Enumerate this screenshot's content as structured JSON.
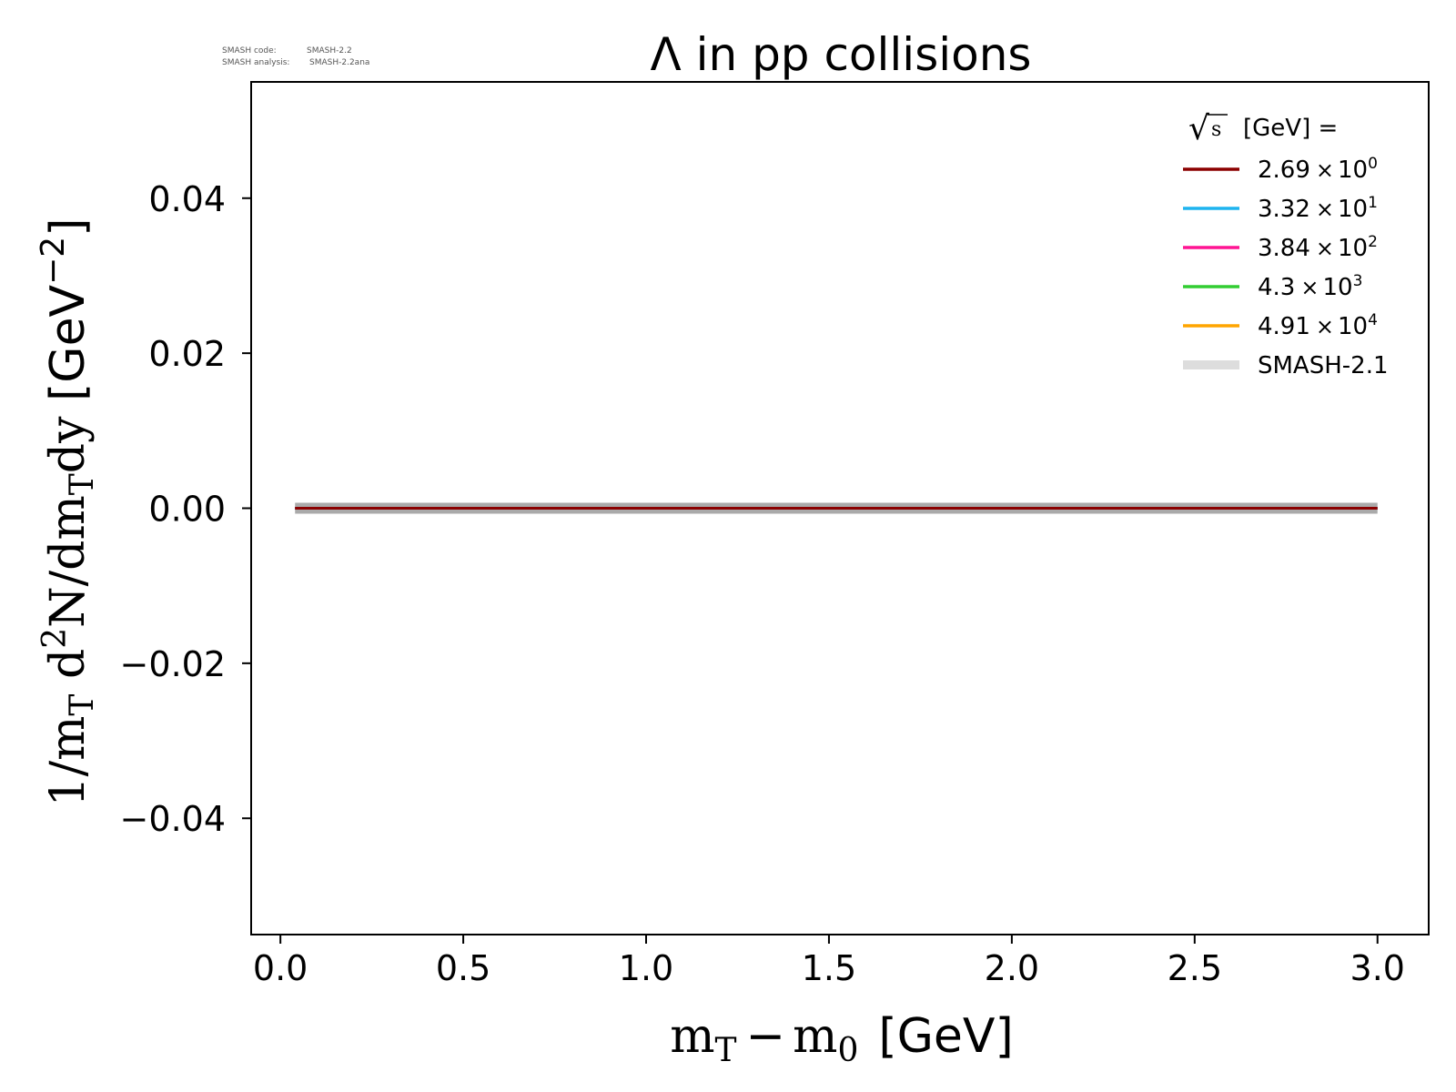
{
  "version_info": {
    "code_label": "SMASH code:",
    "code_value": "SMASH-2.2",
    "analysis_label": "SMASH analysis:",
    "analysis_value": "SMASH-2.2ana"
  },
  "chart_data": {
    "type": "line",
    "title": "Λ in pp collisions",
    "xlabel": {
      "m1": "m",
      "s1": "T",
      "minus": "−",
      "m2": "m",
      "s2": "0",
      "unit": "[GeV]"
    },
    "ylabel": {
      "p1": "1/m",
      "s1": "T",
      "p2": " d",
      "sup": "2",
      "p3": "N/dm",
      "s2": "T",
      "p4": "dy ",
      "unit_open": "[GeV",
      "unit_sup": "−2",
      "unit_close": "]"
    },
    "xlim": [
      -0.08,
      3.14
    ],
    "ylim": [
      -0.055,
      0.055
    ],
    "xticks": [
      0.0,
      0.5,
      1.0,
      1.5,
      2.0,
      2.5,
      3.0
    ],
    "xtick_labels": [
      "0.0",
      "0.5",
      "1.0",
      "1.5",
      "2.0",
      "2.5",
      "3.0"
    ],
    "yticks": [
      0.04,
      0.02,
      0.0,
      -0.02,
      -0.04
    ],
    "ytick_labels": [
      "0.04",
      "0.02",
      "0.00",
      "−0.02",
      "−0.04"
    ],
    "grid": false,
    "legend": {
      "placement": "top-right",
      "title_radical": "√",
      "title_s": "s",
      "title_rest": "[GeV] =",
      "entries": [
        {
          "mantissa": "2.69",
          "times": "×",
          "base": "10",
          "exp": "0",
          "color": "#8b0000"
        },
        {
          "mantissa": "3.32",
          "times": "×",
          "base": "10",
          "exp": "1",
          "color": "#1eb4ef"
        },
        {
          "mantissa": "3.84",
          "times": "×",
          "base": "10",
          "exp": "2",
          "color": "#ff1493"
        },
        {
          "mantissa": "4.3",
          "times": "×",
          "base": "10",
          "exp": "3",
          "color": "#32cd32"
        },
        {
          "mantissa": "4.91",
          "times": "×",
          "base": "10",
          "exp": "4",
          "color": "#ffa500"
        },
        {
          "label": "SMASH-2.1",
          "color": "#dddddd"
        }
      ]
    },
    "series": [
      {
        "name": "2.69 × 10^0",
        "color": "#8b0000",
        "x": [
          0.04,
          3.0
        ],
        "y": [
          0.0,
          0.0
        ]
      },
      {
        "name": "3.32 × 10^1",
        "color": "#1eb4ef",
        "x": [
          0.04,
          3.0
        ],
        "y": [
          0.0,
          0.0
        ]
      },
      {
        "name": "3.84 × 10^2",
        "color": "#ff1493",
        "x": [
          0.04,
          3.0
        ],
        "y": [
          0.0,
          0.0
        ]
      },
      {
        "name": "4.3 × 10^3",
        "color": "#32cd32",
        "x": [
          0.04,
          3.0
        ],
        "y": [
          0.0,
          0.0
        ]
      },
      {
        "name": "4.91 × 10^4",
        "color": "#ffa500",
        "x": [
          0.04,
          3.0
        ],
        "y": [
          0.0,
          0.0
        ]
      },
      {
        "name": "SMASH-2.1",
        "color": "#aaaaaa",
        "x": [
          0.04,
          3.0
        ],
        "y": [
          0.0,
          0.0
        ]
      }
    ]
  }
}
